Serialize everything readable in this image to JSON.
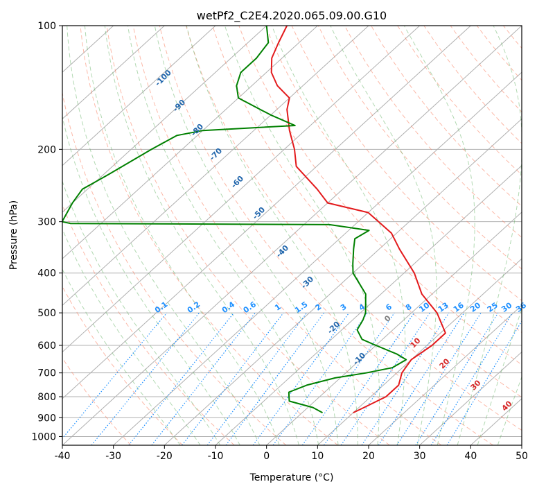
{
  "chart_data": {
    "type": "skew-t",
    "title": "wetPf2_C2E4.2020.065.09.00.G10",
    "xlabel": "Temperature (°C)",
    "ylabel": "Pressure (hPa)",
    "xlim": [
      -40,
      50
    ],
    "ylim": [
      1050,
      100
    ],
    "x_ticks": [
      -40,
      -30,
      -20,
      -10,
      0,
      10,
      20,
      30,
      40,
      50
    ],
    "y_ticks": [
      100,
      200,
      300,
      400,
      500,
      600,
      700,
      800,
      900,
      1000
    ],
    "y_scale": "log",
    "grid": true,
    "series": [
      {
        "name": "",
        "color": "#e31a1c",
        "points": [
          [
            875,
            10
          ],
          [
            850,
            11
          ],
          [
            800,
            13
          ],
          [
            750,
            13
          ],
          [
            700,
            11
          ],
          [
            650,
            10
          ],
          [
            600,
            11
          ],
          [
            560,
            11
          ],
          [
            500,
            5
          ],
          [
            450,
            -2
          ],
          [
            400,
            -8
          ],
          [
            350,
            -16
          ],
          [
            320,
            -21
          ],
          [
            300,
            -26
          ],
          [
            285,
            -30
          ],
          [
            270,
            -40
          ],
          [
            250,
            -45
          ],
          [
            220,
            -54
          ],
          [
            200,
            -58
          ],
          [
            180,
            -63
          ],
          [
            160,
            -68
          ],
          [
            150,
            -70
          ],
          [
            140,
            -75
          ],
          [
            130,
            -79
          ],
          [
            120,
            -82
          ],
          [
            110,
            -84
          ],
          [
            100,
            -86
          ]
        ]
      },
      {
        "name": "",
        "color": "#008000",
        "points": [
          [
            875,
            4
          ],
          [
            850,
            1
          ],
          [
            820,
            -5
          ],
          [
            800,
            -6
          ],
          [
            780,
            -7
          ],
          [
            750,
            -5
          ],
          [
            720,
            -1
          ],
          [
            700,
            4
          ],
          [
            680,
            8
          ],
          [
            650,
            9
          ],
          [
            630,
            6
          ],
          [
            600,
            0
          ],
          [
            580,
            -4
          ],
          [
            550,
            -7
          ],
          [
            520,
            -8
          ],
          [
            500,
            -9
          ],
          [
            450,
            -13
          ],
          [
            400,
            -20
          ],
          [
            380,
            -22
          ],
          [
            350,
            -25
          ],
          [
            330,
            -27
          ],
          [
            315,
            -26
          ],
          [
            305,
            -35
          ],
          [
            303,
            -86
          ],
          [
            300,
            -88
          ],
          [
            270,
            -90
          ],
          [
            250,
            -91
          ],
          [
            230,
            -89
          ],
          [
            200,
            -86
          ],
          [
            185,
            -84
          ],
          [
            180,
            -80
          ],
          [
            175,
            -63
          ],
          [
            165,
            -70
          ],
          [
            150,
            -80
          ],
          [
            140,
            -83
          ],
          [
            130,
            -85
          ],
          [
            120,
            -85
          ],
          [
            110,
            -86
          ],
          [
            100,
            -90
          ]
        ]
      }
    ],
    "isotherm_labels": [
      "-100",
      "-90",
      "-80",
      "-70",
      "-60",
      "-50",
      "-40",
      "-30",
      "-20",
      "-10"
    ],
    "mixing_ratio_labels": [
      "0.1",
      "0.2",
      "0.4",
      "0.6",
      "1",
      "1.5",
      "2",
      "3",
      "4",
      "6",
      "8",
      "10",
      "13",
      "16",
      "20",
      "25",
      "30",
      "36"
    ],
    "adiabat_labels": [
      "0",
      "10",
      "20",
      "30",
      "40"
    ],
    "colors": {
      "temperature": "#e31a1c",
      "dewpoint": "#008000",
      "isotherm_label": "#2166ac",
      "mixing_ratio": "#1e90ff",
      "dry_adiabat": "#fa8060",
      "moist_adiabat": "#66b366",
      "grid": "#b0b0b0",
      "adiabat_label": "#d62728"
    }
  }
}
